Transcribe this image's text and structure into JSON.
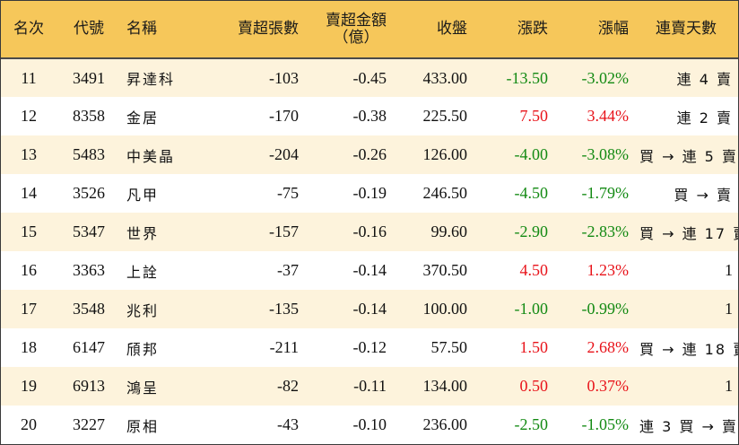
{
  "headers": {
    "rank": "名次",
    "code": "代號",
    "name": "名稱",
    "sell_lots": "賣超張數",
    "sell_amount_line1": "賣超金額",
    "sell_amount_line2": "（億）",
    "close": "收盤",
    "change": "漲跌",
    "change_pct": "漲幅",
    "consecutive": "連賣天數"
  },
  "colors": {
    "header_bg": "#f6c75a",
    "odd_row_bg": "#fdf3dc",
    "up": "#e8131a",
    "down": "#138a13"
  },
  "rows": [
    {
      "rank": "11",
      "code": "3491",
      "name": "昇達科",
      "sell_lots": "-103",
      "sell_amount": "-0.45",
      "close": "433.00",
      "change": "-13.50",
      "change_pct": "-3.02%",
      "direction": "down",
      "consecutive": "連 4 賣"
    },
    {
      "rank": "12",
      "code": "8358",
      "name": "金居",
      "sell_lots": "-170",
      "sell_amount": "-0.38",
      "close": "225.50",
      "change": "7.50",
      "change_pct": "3.44%",
      "direction": "up",
      "consecutive": "連 2 賣"
    },
    {
      "rank": "13",
      "code": "5483",
      "name": "中美晶",
      "sell_lots": "-204",
      "sell_amount": "-0.26",
      "close": "126.00",
      "change": "-4.00",
      "change_pct": "-3.08%",
      "direction": "down",
      "consecutive": "買 → 連 5 賣"
    },
    {
      "rank": "14",
      "code": "3526",
      "name": "凡甲",
      "sell_lots": "-75",
      "sell_amount": "-0.19",
      "close": "246.50",
      "change": "-4.50",
      "change_pct": "-1.79%",
      "direction": "down",
      "consecutive": "買 → 賣"
    },
    {
      "rank": "15",
      "code": "5347",
      "name": "世界",
      "sell_lots": "-157",
      "sell_amount": "-0.16",
      "close": "99.60",
      "change": "-2.90",
      "change_pct": "-2.83%",
      "direction": "down",
      "consecutive": "買 → 連 17 賣"
    },
    {
      "rank": "16",
      "code": "3363",
      "name": "上詮",
      "sell_lots": "-37",
      "sell_amount": "-0.14",
      "close": "370.50",
      "change": "4.50",
      "change_pct": "1.23%",
      "direction": "up",
      "consecutive": "1"
    },
    {
      "rank": "17",
      "code": "3548",
      "name": "兆利",
      "sell_lots": "-135",
      "sell_amount": "-0.14",
      "close": "100.00",
      "change": "-1.00",
      "change_pct": "-0.99%",
      "direction": "down",
      "consecutive": "1"
    },
    {
      "rank": "18",
      "code": "6147",
      "name": "頎邦",
      "sell_lots": "-211",
      "sell_amount": "-0.12",
      "close": "57.50",
      "change": "1.50",
      "change_pct": "2.68%",
      "direction": "up",
      "consecutive": "買 → 連 18 賣"
    },
    {
      "rank": "19",
      "code": "6913",
      "name": "鴻呈",
      "sell_lots": "-82",
      "sell_amount": "-0.11",
      "close": "134.00",
      "change": "0.50",
      "change_pct": "0.37%",
      "direction": "up",
      "consecutive": "1"
    },
    {
      "rank": "20",
      "code": "3227",
      "name": "原相",
      "sell_lots": "-43",
      "sell_amount": "-0.10",
      "close": "236.00",
      "change": "-2.50",
      "change_pct": "-1.05%",
      "direction": "down",
      "consecutive": "連 3 買 → 賣"
    }
  ]
}
